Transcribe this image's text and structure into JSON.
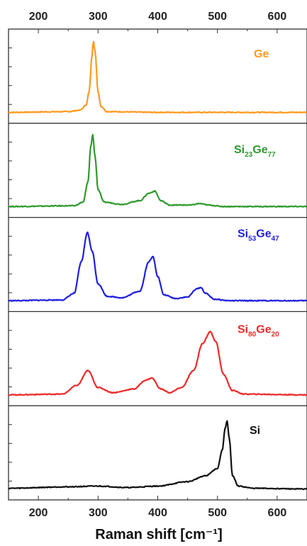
{
  "chart_data": {
    "type": "line",
    "title": "",
    "xlabel": "Raman shift [cm⁻¹]",
    "ylabel": "",
    "xlim": [
      150,
      650
    ],
    "xticks": [
      200,
      300,
      400,
      500,
      600
    ],
    "x_top_axis": true,
    "panels": 5,
    "grid": false,
    "legend": "in-panel labels",
    "series": [
      {
        "label_parts": [
          {
            "t": "Ge",
            "sub": false
          }
        ],
        "color": "#ff9a1f",
        "panel": 0,
        "points": [
          [
            150,
            0.02
          ],
          [
            250,
            0.03
          ],
          [
            270,
            0.05
          ],
          [
            280,
            0.12
          ],
          [
            285,
            0.3
          ],
          [
            290,
            0.8
          ],
          [
            292,
            1.0
          ],
          [
            295,
            0.85
          ],
          [
            300,
            0.3
          ],
          [
            305,
            0.1
          ],
          [
            315,
            0.03
          ],
          [
            400,
            0.02
          ],
          [
            650,
            0.02
          ]
        ]
      },
      {
        "label_parts": [
          {
            "t": "Si",
            "sub": false
          },
          {
            "t": "23",
            "sub": true
          },
          {
            "t": "Ge",
            "sub": false
          },
          {
            "t": "77",
            "sub": true
          }
        ],
        "color": "#2e9a2e",
        "panel": 1,
        "points": [
          [
            150,
            0.02
          ],
          [
            260,
            0.03
          ],
          [
            275,
            0.08
          ],
          [
            283,
            0.35
          ],
          [
            288,
            0.85
          ],
          [
            291,
            1.0
          ],
          [
            295,
            0.7
          ],
          [
            300,
            0.25
          ],
          [
            310,
            0.08
          ],
          [
            340,
            0.05
          ],
          [
            370,
            0.1
          ],
          [
            385,
            0.2
          ],
          [
            395,
            0.23
          ],
          [
            405,
            0.1
          ],
          [
            420,
            0.04
          ],
          [
            455,
            0.04
          ],
          [
            470,
            0.06
          ],
          [
            485,
            0.04
          ],
          [
            510,
            0.02
          ],
          [
            650,
            0.02
          ]
        ]
      },
      {
        "label_parts": [
          {
            "t": "Si",
            "sub": false
          },
          {
            "t": "53",
            "sub": true
          },
          {
            "t": "Ge",
            "sub": false
          },
          {
            "t": "47",
            "sub": true
          }
        ],
        "color": "#1f1fe0",
        "panel": 2,
        "points": [
          [
            150,
            0.02
          ],
          [
            240,
            0.03
          ],
          [
            260,
            0.12
          ],
          [
            272,
            0.55
          ],
          [
            282,
            0.95
          ],
          [
            290,
            0.7
          ],
          [
            300,
            0.25
          ],
          [
            315,
            0.08
          ],
          [
            340,
            0.06
          ],
          [
            370,
            0.15
          ],
          [
            385,
            0.55
          ],
          [
            392,
            0.62
          ],
          [
            400,
            0.35
          ],
          [
            410,
            0.1
          ],
          [
            430,
            0.05
          ],
          [
            450,
            0.07
          ],
          [
            465,
            0.18
          ],
          [
            472,
            0.2
          ],
          [
            480,
            0.12
          ],
          [
            495,
            0.04
          ],
          [
            520,
            0.02
          ],
          [
            650,
            0.02
          ]
        ]
      },
      {
        "label_parts": [
          {
            "t": "Si",
            "sub": false
          },
          {
            "t": "80",
            "sub": true
          },
          {
            "t": "Ge",
            "sub": false
          },
          {
            "t": "20",
            "sub": true
          }
        ],
        "color": "#ee2a2a",
        "panel": 3,
        "points": [
          [
            150,
            0.02
          ],
          [
            240,
            0.03
          ],
          [
            265,
            0.15
          ],
          [
            283,
            0.35
          ],
          [
            300,
            0.12
          ],
          [
            325,
            0.05
          ],
          [
            360,
            0.1
          ],
          [
            380,
            0.22
          ],
          [
            390,
            0.25
          ],
          [
            405,
            0.1
          ],
          [
            420,
            0.05
          ],
          [
            440,
            0.12
          ],
          [
            460,
            0.35
          ],
          [
            475,
            0.72
          ],
          [
            488,
            0.88
          ],
          [
            497,
            0.75
          ],
          [
            510,
            0.3
          ],
          [
            525,
            0.08
          ],
          [
            545,
            0.03
          ],
          [
            650,
            0.02
          ]
        ]
      },
      {
        "label_parts": [
          {
            "t": "Si",
            "sub": false
          }
        ],
        "color": "#111111",
        "panel": 4,
        "points": [
          [
            150,
            0.03
          ],
          [
            250,
            0.05
          ],
          [
            300,
            0.06
          ],
          [
            350,
            0.04
          ],
          [
            400,
            0.06
          ],
          [
            450,
            0.12
          ],
          [
            480,
            0.2
          ],
          [
            500,
            0.3
          ],
          [
            508,
            0.55
          ],
          [
            513,
            0.85
          ],
          [
            516,
            0.95
          ],
          [
            520,
            0.7
          ],
          [
            525,
            0.2
          ],
          [
            535,
            0.06
          ],
          [
            560,
            0.03
          ],
          [
            650,
            0.02
          ]
        ]
      }
    ]
  }
}
